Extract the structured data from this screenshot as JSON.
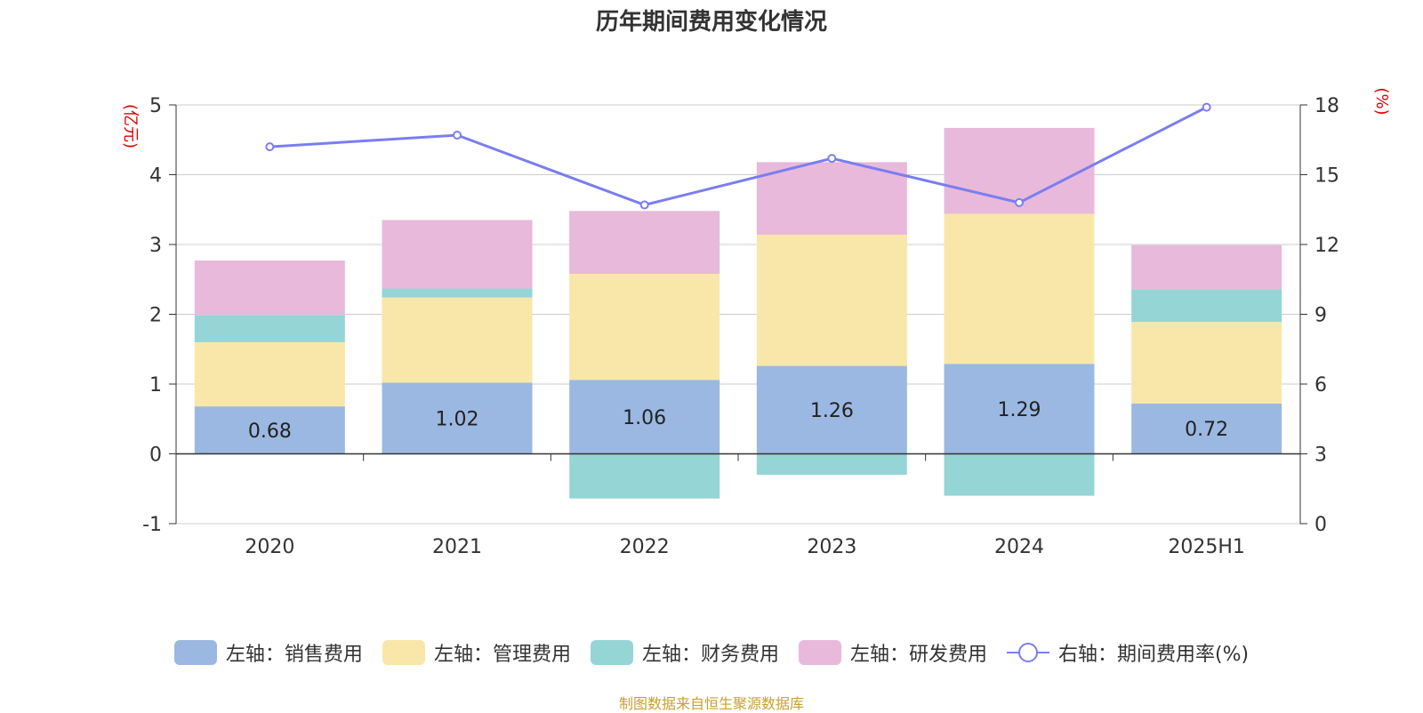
{
  "title": "历年期间费用变化情况",
  "source": "制图数据来自恒生聚源数据库",
  "colors": {
    "sales": "#9bb8e2",
    "admin": "#f8e7a8",
    "finance": "#95d5d5",
    "rd": "#e8b9da",
    "rate": "#7a7ef0",
    "axis_unit": "#e00000"
  },
  "legend": [
    {
      "label": "左轴：销售费用",
      "color": "#9bb8e2",
      "kind": "bar"
    },
    {
      "label": "左轴：管理费用",
      "color": "#f8e7a8",
      "kind": "bar"
    },
    {
      "label": "左轴：财务费用",
      "color": "#95d5d5",
      "kind": "bar"
    },
    {
      "label": "左轴：研发费用",
      "color": "#e8b9da",
      "kind": "bar"
    },
    {
      "label": "右轴：期间费用率(%)",
      "color": "#7a7ef0",
      "kind": "line"
    }
  ],
  "chart_data": {
    "type": "bar",
    "title": "历年期间费用变化情况",
    "categories": [
      "2020",
      "2021",
      "2022",
      "2023",
      "2024",
      "2025H1"
    ],
    "left_axis": {
      "unit": "(亿元)",
      "ylim": [
        -1,
        5
      ],
      "ticks": [
        "-1",
        "0",
        "1",
        "2",
        "3",
        "4",
        "5"
      ]
    },
    "right_axis": {
      "unit": "(%)",
      "ylim": [
        0,
        18
      ],
      "ticks": [
        "0",
        "3",
        "6",
        "9",
        "12",
        "15",
        "18"
      ]
    },
    "grid": true,
    "legend_position": "bottom",
    "series": [
      {
        "name": "左轴：销售费用",
        "type": "bar",
        "axis": "left",
        "values": [
          0.68,
          1.02,
          1.06,
          1.26,
          1.29,
          0.72
        ],
        "labels": [
          "0.68",
          "1.02",
          "1.06",
          "1.26",
          "1.29",
          "0.72"
        ]
      },
      {
        "name": "左轴：管理费用",
        "type": "bar",
        "axis": "left",
        "values": [
          0.92,
          1.22,
          1.52,
          1.88,
          2.15,
          1.17
        ]
      },
      {
        "name": "左轴：财务费用",
        "type": "bar",
        "axis": "left",
        "values": [
          0.39,
          0.13,
          -0.64,
          -0.3,
          -0.6,
          0.47
        ]
      },
      {
        "name": "左轴：研发费用",
        "type": "bar",
        "axis": "left",
        "values": [
          0.78,
          0.98,
          0.9,
          1.04,
          1.23,
          0.63
        ]
      },
      {
        "name": "右轴：期间费用率(%)",
        "type": "line",
        "axis": "right",
        "values": [
          16.2,
          16.7,
          13.7,
          15.7,
          13.8,
          17.9
        ]
      }
    ]
  }
}
